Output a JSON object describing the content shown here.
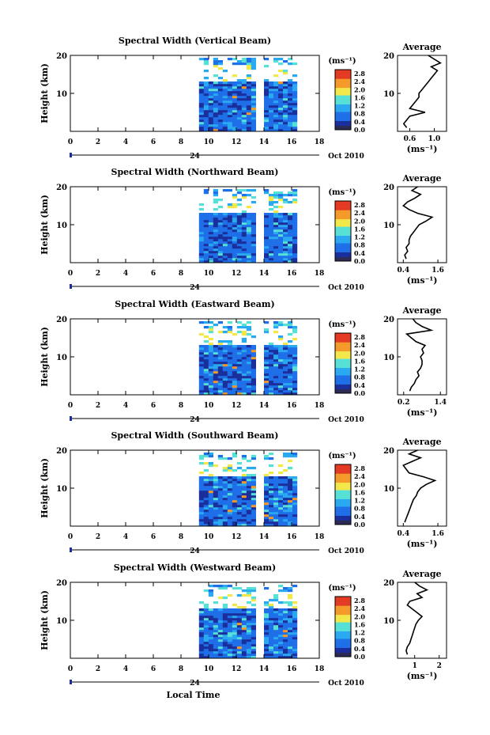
{
  "figure": {
    "date_label": "Oct 2010",
    "day_label": "24",
    "xaxis_title": "Local Time",
    "colorbar_unit": "(ms⁻¹)",
    "avg_title": "Average",
    "avg_unit": "(ms⁻¹)",
    "colors": [
      "#ffffff",
      "#1b2f9c",
      "#1f6fe8",
      "#2aa8f0",
      "#57e0d6",
      "#f2e84a",
      "#f39a2a",
      "#e43a24"
    ]
  },
  "chart_data": [
    {
      "type": "heatmap",
      "title": "Spectral Width (Vertical Beam)",
      "xlabel": "",
      "ylabel": "Height (km)",
      "x_ticks": [
        "0",
        "2",
        "4",
        "6",
        "8",
        "10",
        "12",
        "14",
        "16",
        "18"
      ],
      "xlim": [
        0,
        18
      ],
      "y_ticks": [
        "10",
        "20"
      ],
      "ylim": [
        0,
        20
      ],
      "colorbar": {
        "ticks": [
          "0.0",
          "0.4",
          "0.8",
          "1.2",
          "1.6",
          "2.0",
          "2.4",
          "2.8"
        ],
        "range": [
          0,
          3.0
        ]
      },
      "data_time_segments": [
        [
          9.3,
          13.2
        ],
        [
          14.0,
          16.3
        ]
      ],
      "average": {
        "x_ticks": [
          "0.6",
          "1.0"
        ],
        "xlim": [
          0.4,
          1.2
        ],
        "points": [
          [
            0.55,
            1
          ],
          [
            0.5,
            2
          ],
          [
            0.55,
            3
          ],
          [
            0.6,
            4
          ],
          [
            0.85,
            5
          ],
          [
            0.6,
            6
          ],
          [
            0.65,
            7
          ],
          [
            0.7,
            8
          ],
          [
            0.75,
            9
          ],
          [
            0.75,
            10
          ],
          [
            0.8,
            11
          ],
          [
            0.85,
            12
          ],
          [
            0.9,
            13
          ],
          [
            0.95,
            14
          ],
          [
            1.0,
            15
          ],
          [
            1.05,
            16
          ],
          [
            0.95,
            17
          ],
          [
            1.1,
            18
          ],
          [
            1.0,
            19
          ],
          [
            0.9,
            20
          ]
        ]
      }
    },
    {
      "type": "heatmap",
      "title": "Spectral Width (Northward Beam)",
      "xlabel": "",
      "ylabel": "Height (km)",
      "x_ticks": [
        "0",
        "2",
        "4",
        "6",
        "8",
        "10",
        "12",
        "14",
        "16",
        "18"
      ],
      "xlim": [
        0,
        18
      ],
      "y_ticks": [
        "10",
        "20"
      ],
      "ylim": [
        0,
        20
      ],
      "colorbar": {
        "ticks": [
          "0.0",
          "0.4",
          "0.8",
          "1.2",
          "1.6",
          "2.0",
          "2.4",
          "2.8"
        ],
        "range": [
          0,
          3.0
        ]
      },
      "data_time_segments": [
        [
          9.3,
          13.2
        ],
        [
          14.0,
          16.3
        ]
      ],
      "average": {
        "x_ticks": [
          "0.4",
          "1.6"
        ],
        "xlim": [
          0.2,
          1.9
        ],
        "points": [
          [
            0.5,
            1
          ],
          [
            0.45,
            2
          ],
          [
            0.55,
            3
          ],
          [
            0.5,
            4
          ],
          [
            0.6,
            5
          ],
          [
            0.6,
            6
          ],
          [
            0.65,
            7
          ],
          [
            0.75,
            8
          ],
          [
            0.85,
            9
          ],
          [
            0.95,
            10
          ],
          [
            1.2,
            11
          ],
          [
            1.4,
            12
          ],
          [
            0.9,
            13
          ],
          [
            0.6,
            14
          ],
          [
            0.4,
            15
          ],
          [
            0.55,
            16
          ],
          [
            0.8,
            17
          ],
          [
            1.0,
            18
          ],
          [
            0.7,
            19
          ],
          [
            0.9,
            20
          ]
        ]
      }
    },
    {
      "type": "heatmap",
      "title": "Spectral Width (Eastward Beam)",
      "xlabel": "",
      "ylabel": "Height (km)",
      "x_ticks": [
        "0",
        "2",
        "4",
        "6",
        "8",
        "10",
        "12",
        "14",
        "16",
        "18"
      ],
      "xlim": [
        0,
        18
      ],
      "y_ticks": [
        "10",
        "20"
      ],
      "ylim": [
        0,
        20
      ],
      "colorbar": {
        "ticks": [
          "0.0",
          "0.4",
          "0.8",
          "1.2",
          "1.6",
          "2.0",
          "2.4",
          "2.8"
        ],
        "range": [
          0,
          3.0
        ]
      },
      "data_time_segments": [
        [
          9.3,
          13.2
        ],
        [
          14.0,
          16.3
        ]
      ],
      "average": {
        "x_ticks": [
          "0.2",
          "1.4"
        ],
        "xlim": [
          0.0,
          1.6
        ],
        "points": [
          [
            0.4,
            1
          ],
          [
            0.45,
            2
          ],
          [
            0.55,
            3
          ],
          [
            0.6,
            4
          ],
          [
            0.7,
            5
          ],
          [
            0.65,
            6
          ],
          [
            0.75,
            7
          ],
          [
            0.8,
            8
          ],
          [
            0.8,
            9
          ],
          [
            0.75,
            10
          ],
          [
            0.85,
            11
          ],
          [
            0.8,
            12
          ],
          [
            0.9,
            13
          ],
          [
            0.6,
            14
          ],
          [
            0.45,
            15
          ],
          [
            0.3,
            16
          ],
          [
            1.1,
            17
          ],
          [
            0.8,
            18
          ],
          [
            0.6,
            19
          ],
          [
            0.5,
            20
          ]
        ]
      }
    },
    {
      "type": "heatmap",
      "title": "Spectral Width (Southward Beam)",
      "xlabel": "",
      "ylabel": "Height (km)",
      "x_ticks": [
        "0",
        "2",
        "4",
        "6",
        "8",
        "10",
        "12",
        "14",
        "16",
        "18"
      ],
      "xlim": [
        0,
        18
      ],
      "y_ticks": [
        "10",
        "20"
      ],
      "ylim": [
        0,
        20
      ],
      "colorbar": {
        "ticks": [
          "0.0",
          "0.4",
          "0.8",
          "1.2",
          "1.6",
          "2.0",
          "2.4",
          "2.8"
        ],
        "range": [
          0,
          3.0
        ]
      },
      "data_time_segments": [
        [
          9.3,
          13.2
        ],
        [
          14.0,
          16.3
        ]
      ],
      "average": {
        "x_ticks": [
          "0.4",
          "1.6"
        ],
        "xlim": [
          0.2,
          1.9
        ],
        "points": [
          [
            0.45,
            1
          ],
          [
            0.5,
            2
          ],
          [
            0.55,
            3
          ],
          [
            0.6,
            4
          ],
          [
            0.65,
            5
          ],
          [
            0.7,
            6
          ],
          [
            0.75,
            7
          ],
          [
            0.85,
            8
          ],
          [
            0.9,
            9
          ],
          [
            1.0,
            10
          ],
          [
            1.2,
            11
          ],
          [
            1.5,
            12
          ],
          [
            1.1,
            13
          ],
          [
            0.6,
            14
          ],
          [
            0.5,
            15
          ],
          [
            0.4,
            16
          ],
          [
            0.7,
            17
          ],
          [
            1.0,
            18
          ],
          [
            0.6,
            19
          ],
          [
            0.9,
            20
          ]
        ]
      }
    },
    {
      "type": "heatmap",
      "title": "Spectral Width (Westward Beam)",
      "xlabel": "Local Time",
      "ylabel": "Height (km)",
      "x_ticks": [
        "0",
        "2",
        "4",
        "6",
        "8",
        "10",
        "12",
        "14",
        "16",
        "18"
      ],
      "xlim": [
        0,
        18
      ],
      "y_ticks": [
        "10",
        "20"
      ],
      "ylim": [
        0,
        20
      ],
      "colorbar": {
        "ticks": [
          "0.0",
          "0.4",
          "0.8",
          "1.2",
          "1.6",
          "2.0",
          "2.4",
          "2.8"
        ],
        "range": [
          0,
          3.0
        ]
      },
      "data_time_segments": [
        [
          9.3,
          13.2
        ],
        [
          14.0,
          16.3
        ]
      ],
      "average": {
        "x_ticks": [
          "1",
          "2"
        ],
        "xlim": [
          0.3,
          2.3
        ],
        "points": [
          [
            0.7,
            1
          ],
          [
            0.65,
            2
          ],
          [
            0.7,
            3
          ],
          [
            0.8,
            4
          ],
          [
            0.85,
            5
          ],
          [
            0.9,
            6
          ],
          [
            0.95,
            7
          ],
          [
            1.0,
            8
          ],
          [
            1.05,
            9
          ],
          [
            1.15,
            10
          ],
          [
            1.3,
            11
          ],
          [
            1.1,
            12
          ],
          [
            0.9,
            13
          ],
          [
            0.7,
            14
          ],
          [
            0.8,
            15
          ],
          [
            1.3,
            16
          ],
          [
            1.1,
            17
          ],
          [
            1.5,
            18
          ],
          [
            1.2,
            19
          ],
          [
            1.0,
            20
          ]
        ]
      }
    }
  ]
}
